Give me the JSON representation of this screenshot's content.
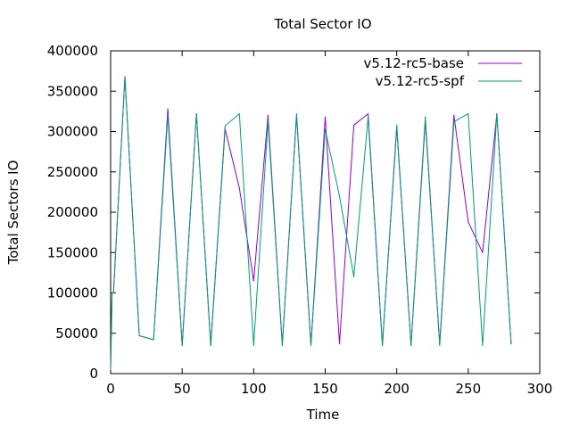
{
  "chart_data": {
    "type": "line",
    "title": "Total Sector IO",
    "xlabel": "Time",
    "ylabel": "Total Sectors IO",
    "xlim": [
      0,
      300
    ],
    "ylim": [
      0,
      400000
    ],
    "xticks": [
      0,
      50,
      100,
      150,
      200,
      250,
      300
    ],
    "yticks": [
      0,
      50000,
      100000,
      150000,
      200000,
      250000,
      300000,
      350000,
      400000
    ],
    "grid": false,
    "legend_position": "top-right",
    "series": [
      {
        "name": "v5.12-rc5-base",
        "color": "#9400d3",
        "x": [
          0,
          1,
          2,
          10,
          20,
          30,
          40,
          50,
          60,
          70,
          80,
          90,
          100,
          110,
          120,
          130,
          140,
          150,
          160,
          170,
          180,
          190,
          200,
          210,
          220,
          230,
          240,
          250,
          260,
          270,
          280
        ],
        "y": [
          5000,
          100000,
          100000,
          368000,
          47000,
          42000,
          328000,
          35000,
          322000,
          35000,
          303000,
          230000,
          115000,
          320000,
          35000,
          320000,
          35000,
          318000,
          37000,
          308000,
          322000,
          35000,
          305000,
          35000,
          313000,
          37000,
          320000,
          188000,
          150000,
          322000,
          37000
        ]
      },
      {
        "name": "v5.12-rc5-spf",
        "color": "#009e73",
        "x": [
          0,
          1,
          2,
          10,
          20,
          30,
          40,
          50,
          60,
          70,
          80,
          90,
          100,
          110,
          120,
          130,
          140,
          150,
          160,
          170,
          180,
          190,
          200,
          210,
          220,
          230,
          240,
          250,
          260,
          270,
          280
        ],
        "y": [
          5000,
          100000,
          100000,
          368000,
          47000,
          42000,
          320000,
          35000,
          322000,
          35000,
          307000,
          322000,
          35000,
          313000,
          35000,
          322000,
          35000,
          303000,
          220000,
          120000,
          318000,
          35000,
          308000,
          35000,
          318000,
          35000,
          312000,
          322000,
          35000,
          322000,
          37000
        ]
      }
    ]
  }
}
